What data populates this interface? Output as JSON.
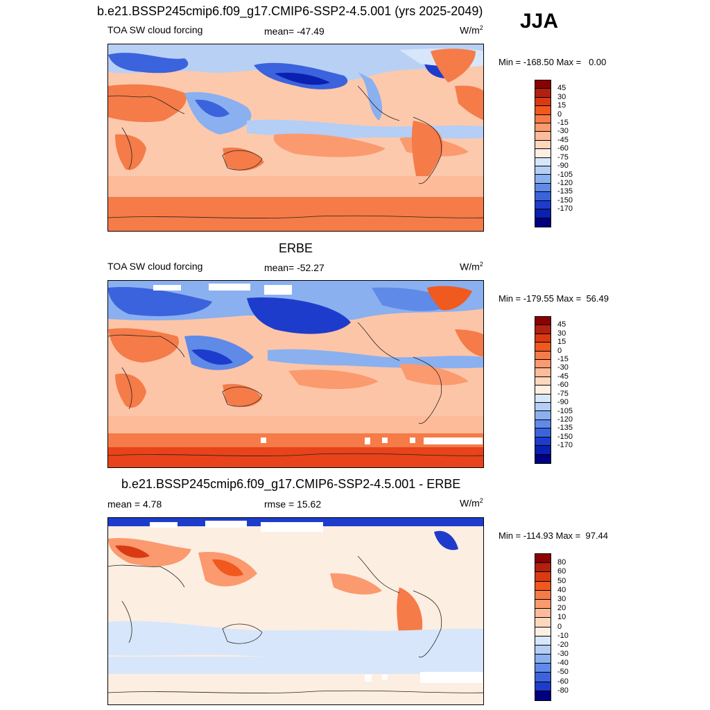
{
  "header": {
    "title": "b.e21.BSSP245cmip6.f09_g17.CMIP6-SSP2-4.5.001 (yrs 2025-2049)",
    "season": "JJA"
  },
  "panels": [
    {
      "id": "model",
      "title": "",
      "left_label": "TOA SW cloud forcing",
      "center_label": "mean= -47.49",
      "units": "W/m",
      "units_exp": "2",
      "minmax": "Min = -168.50 Max =   0.00",
      "colorbar": {
        "colors": [
          "#8b0000",
          "#b22010",
          "#d93a14",
          "#f0581d",
          "#f57b48",
          "#fb9a6e",
          "#fdbb99",
          "#fdd8bf",
          "#fdf0e2",
          "#d7e6fa",
          "#b4cef6",
          "#8ab0f0",
          "#5f8ae8",
          "#3a63dd",
          "#1e3ccc",
          "#0a20b0",
          "#000080"
        ],
        "labels": [
          "45",
          "30",
          "15",
          "0",
          "-15",
          "-30",
          "-45",
          "-60",
          "-75",
          "-90",
          "-105",
          "-120",
          "-135",
          "-150",
          "-170"
        ]
      }
    },
    {
      "id": "obs",
      "title": "ERBE",
      "left_label": "TOA SW cloud forcing",
      "center_label": "mean= -52.27",
      "units": "W/m",
      "units_exp": "2",
      "minmax": "Min = -179.55 Max =  56.49",
      "colorbar": {
        "colors": [
          "#8b0000",
          "#b22010",
          "#d93a14",
          "#f0581d",
          "#f57b48",
          "#fb9a6e",
          "#fdbb99",
          "#fdd8bf",
          "#fdf0e2",
          "#d7e6fa",
          "#b4cef6",
          "#8ab0f0",
          "#5f8ae8",
          "#3a63dd",
          "#1e3ccc",
          "#0a20b0",
          "#000080"
        ],
        "labels": [
          "45",
          "30",
          "15",
          "0",
          "-15",
          "-30",
          "-45",
          "-60",
          "-75",
          "-90",
          "-105",
          "-120",
          "-135",
          "-150",
          "-170"
        ]
      }
    },
    {
      "id": "diff",
      "title": "b.e21.BSSP245cmip6.f09_g17.CMIP6-SSP2-4.5.001 - ERBE",
      "left_label": "mean =   4.78",
      "center_label": "rmse =  15.62",
      "units": "W/m",
      "units_exp": "2",
      "minmax": "Min = -114.93 Max =  97.44",
      "colorbar": {
        "colors": [
          "#8b0000",
          "#b22010",
          "#d93a14",
          "#f0581d",
          "#f57b48",
          "#fb9a6e",
          "#fdbb99",
          "#fdd8bf",
          "#fdf0e2",
          "#d7e6fa",
          "#b4cef6",
          "#8ab0f0",
          "#5f8ae8",
          "#3a63dd",
          "#1e3ccc",
          "#000080"
        ],
        "labels": [
          "80",
          "60",
          "50",
          "40",
          "30",
          "20",
          "10",
          "0",
          "-10",
          "-20",
          "-30",
          "-40",
          "-50",
          "-60",
          "-80"
        ]
      }
    }
  ]
}
